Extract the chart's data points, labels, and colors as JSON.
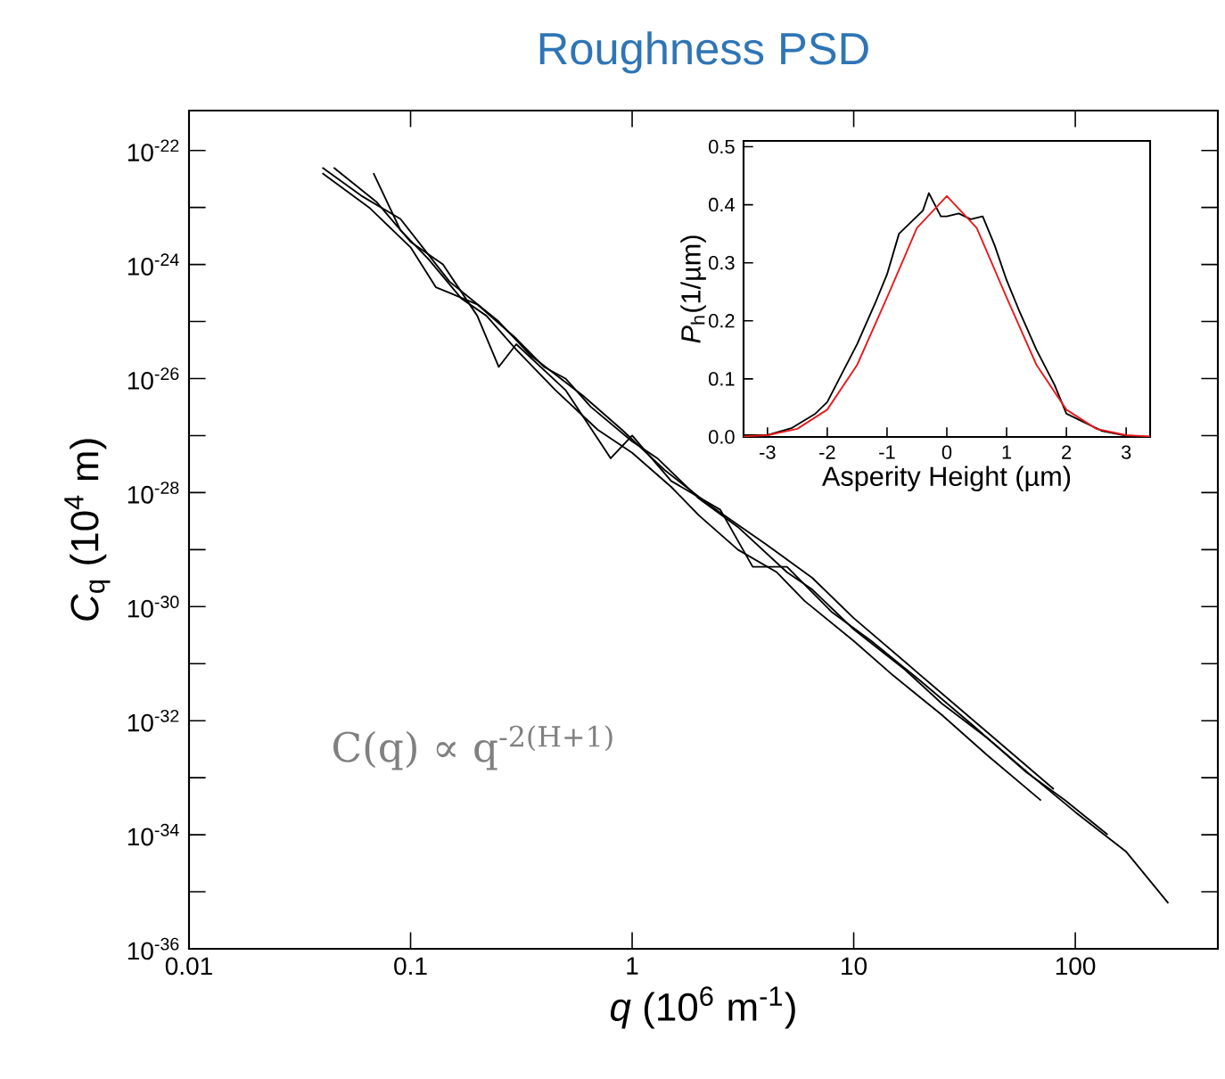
{
  "chart_data": [
    {
      "type": "line",
      "title": "Roughness PSD",
      "xlabel": "*q* (10$^{6}$ m$^{-1}$)",
      "ylabel": "*C*$_{q}$ (10$^{4}$ m)",
      "log": "xy",
      "grid": false,
      "xlim": [
        0.01,
        440
      ],
      "ylim": [
        1e-36,
        5e-22
      ],
      "xticks": [
        0.01,
        0.1,
        1,
        10,
        100
      ],
      "yticks": [
        {
          "value": 1e-36,
          "label": "10$^{-36}$"
        },
        {
          "value": 1e-35,
          "label": null
        },
        {
          "value": 1e-34,
          "label": "10$^{-34}$"
        },
        {
          "value": 1e-33,
          "label": null
        },
        {
          "value": 1e-32,
          "label": "10$^{-32}$"
        },
        {
          "value": 1e-31,
          "label": null
        },
        {
          "value": 1e-30,
          "label": "10$^{-30}$"
        },
        {
          "value": 1e-29,
          "label": null
        },
        {
          "value": 1e-28,
          "label": "10$^{-28}$"
        },
        {
          "value": 1e-27,
          "label": null
        },
        {
          "value": 1e-26,
          "label": "10$^{-26}$"
        },
        {
          "value": 1e-25,
          "label": null
        },
        {
          "value": 1e-24,
          "label": "10$^{-24}$"
        },
        {
          "value": 1e-23,
          "label": null
        },
        {
          "value": 1e-22,
          "label": "10$^{-22}$"
        }
      ],
      "annotations": [
        "C(q) ∝ q$^{-2(H+1)}$"
      ],
      "series": [
        {
          "color": "#000000",
          "x": [
            0.04,
            0.065,
            0.1,
            0.13,
            0.2,
            0.3,
            0.4,
            0.5,
            0.65,
            1,
            1.3,
            2,
            3,
            5,
            6.5,
            10,
            17,
            25,
            40,
            65,
            100,
            170,
            263
          ],
          "values": [
            4e-23,
            1e-23,
            2e-24,
            4e-25,
            2e-25,
            5e-26,
            1.6e-26,
            1e-26,
            3.2e-27,
            7.9e-28,
            4e-28,
            7.9e-29,
            2.5e-29,
            4e-30,
            2e-30,
            4e-31,
            7.9e-32,
            2e-32,
            5e-33,
            1e-33,
            2.5e-34,
            5e-35,
            6.3e-36
          ]
        },
        {
          "color": "#000000",
          "x": [
            0.045,
            0.07,
            0.1,
            0.14,
            0.2,
            0.25,
            0.3,
            0.5,
            0.8,
            1,
            1.5,
            2.5,
            3.5,
            5,
            8,
            12,
            20,
            35,
            60,
            90,
            140
          ],
          "values": [
            5e-23,
            1.26e-23,
            2.5e-24,
            1e-24,
            1.26e-25,
            1.6e-26,
            4e-26,
            6.3e-27,
            4e-28,
            1e-27,
            1.6e-28,
            5e-29,
            5e-30,
            5e-30,
            7.9e-31,
            2.5e-31,
            5e-32,
            7.9e-33,
            1.26e-33,
            4e-34,
            1e-34
          ]
        },
        {
          "color": "#000000",
          "x": [
            0.068,
            0.09,
            0.12,
            0.17,
            0.22,
            0.3,
            0.45,
            0.7,
            1,
            1.5,
            2,
            3,
            4.5,
            6,
            10,
            15,
            25,
            40,
            70
          ],
          "values": [
            4e-23,
            4e-24,
            1.26e-24,
            2.5e-25,
            1.26e-25,
            3.2e-26,
            6.3e-27,
            1.26e-27,
            5e-28,
            1.26e-28,
            4e-29,
            1e-29,
            4e-30,
            1.26e-30,
            2.5e-31,
            6.3e-32,
            1.26e-32,
            2.5e-33,
            4e-34
          ]
        },
        {
          "color": "#000000",
          "x": [
            0.04,
            0.06,
            0.09,
            0.15,
            0.25,
            0.35,
            0.6,
            0.9,
            1.4,
            2.2,
            4,
            6.5,
            10,
            20,
            40,
            80
          ],
          "values": [
            5e-23,
            1.6e-23,
            6.3e-24,
            5e-25,
            1e-25,
            2.5e-26,
            5e-27,
            1.26e-27,
            2.5e-28,
            6.3e-29,
            1.26e-29,
            3.2e-30,
            6.3e-31,
            6.3e-32,
            6.3e-33,
            6.3e-34
          ]
        }
      ]
    },
    {
      "type": "line",
      "xlabel": "Asperity Height (µm)",
      "ylabel": "*P*$_{h}$(1/µm)",
      "grid": false,
      "xlim": [
        -3.4,
        3.4
      ],
      "ylim": [
        0,
        0.51
      ],
      "xticks": [
        -3,
        -2,
        -1,
        0,
        1,
        2,
        3
      ],
      "yticks": [
        {
          "value": 0,
          "label": "0.0"
        },
        {
          "value": 0.1,
          "label": "0.1"
        },
        {
          "value": 0.2,
          "label": "0.2"
        },
        {
          "value": 0.3,
          "label": "0.3"
        },
        {
          "value": 0.4,
          "label": "0.4"
        },
        {
          "value": 0.5,
          "label": "0.5"
        }
      ],
      "series": [
        {
          "color": "#000000",
          "x": [
            -3.4,
            -3,
            -2.6,
            -2.2,
            -2,
            -1.8,
            -1.5,
            -1.2,
            -1,
            -0.8,
            -0.6,
            -0.4,
            -0.3,
            -0.2,
            -0.1,
            0,
            0.2,
            0.4,
            0.6,
            0.8,
            1,
            1.2,
            1.5,
            1.8,
            2,
            2.2,
            2.6,
            3,
            3.4
          ],
          "values": [
            0.003,
            0.003,
            0.015,
            0.04,
            0.06,
            0.1,
            0.16,
            0.23,
            0.28,
            0.35,
            0.37,
            0.39,
            0.42,
            0.4,
            0.38,
            0.38,
            0.385,
            0.375,
            0.38,
            0.33,
            0.27,
            0.22,
            0.15,
            0.09,
            0.04,
            0.03,
            0.01,
            0.002,
            0
          ]
        },
        {
          "color": "#e8191b",
          "x": [
            -3.4,
            -3,
            -2.5,
            -2,
            -1.5,
            -1,
            -0.5,
            0,
            0.5,
            1,
            1.5,
            2,
            2.5,
            3,
            3.4
          ],
          "values": [
            0.001,
            0.003,
            0.014,
            0.047,
            0.124,
            0.24,
            0.36,
            0.415,
            0.36,
            0.24,
            0.124,
            0.047,
            0.014,
            0.003,
            0.001
          ]
        }
      ]
    }
  ]
}
